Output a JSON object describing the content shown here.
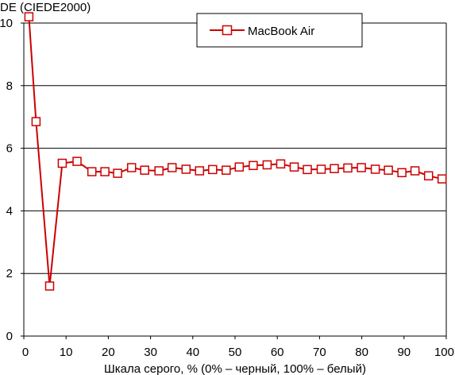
{
  "chart_data": {
    "type": "line",
    "ylabel": "DE (CIEDE2000)",
    "xlabel": "Шкала серого, % (0% – черный, 100% – белый)",
    "xlim": [
      0,
      100
    ],
    "ylim": [
      0,
      10
    ],
    "x_ticks": [
      0,
      10,
      20,
      30,
      40,
      50,
      60,
      70,
      80,
      90,
      100
    ],
    "y_ticks": [
      0,
      2,
      4,
      6,
      8,
      10
    ],
    "grid": "horizontal",
    "legend_position": "top-center",
    "series": [
      {
        "name": "MacBook Air",
        "color": "#cc0000",
        "marker": "square-open",
        "x": [
          1.2,
          2.9,
          6.1,
          9.1,
          12.6,
          16.1,
          19.2,
          22.2,
          25.5,
          28.6,
          32.0,
          35.1,
          38.4,
          41.6,
          44.7,
          47.9,
          51.0,
          54.3,
          57.6,
          60.8,
          64.0,
          67.1,
          70.4,
          73.5,
          76.7,
          79.9,
          83.2,
          86.3,
          89.5,
          92.6,
          95.8,
          99.0
        ],
        "values": [
          10.2,
          6.85,
          1.6,
          5.52,
          5.58,
          5.25,
          5.25,
          5.2,
          5.38,
          5.3,
          5.28,
          5.38,
          5.33,
          5.28,
          5.32,
          5.3,
          5.4,
          5.45,
          5.47,
          5.5,
          5.4,
          5.32,
          5.33,
          5.35,
          5.37,
          5.38,
          5.33,
          5.3,
          5.22,
          5.28,
          5.12,
          5.02
        ]
      }
    ]
  }
}
